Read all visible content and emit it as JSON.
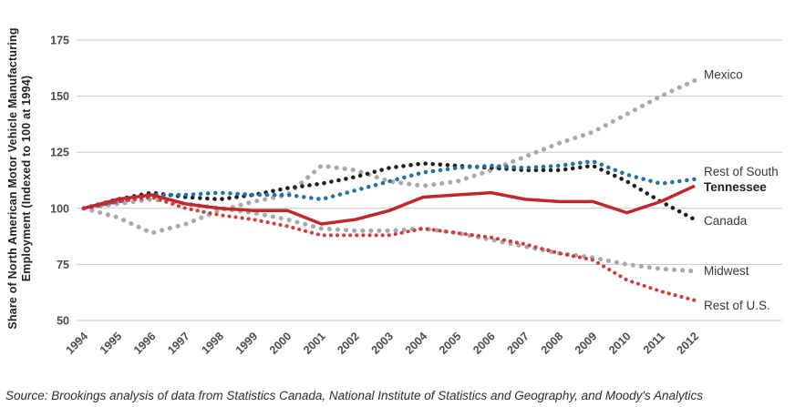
{
  "chart": {
    "y_axis_title_line1": "Share of North American Motor Vehicle Manufacturing",
    "y_axis_title_line2": "Employment (Indexed to 100 at 1994)",
    "source": "Source: Brookings analysis of data from Statistics Canada, National Institute of Statistics and Geography, and Moody's Analytics"
  },
  "chart_data": {
    "type": "line",
    "title": "",
    "xlabel": "",
    "ylabel": "Share of North American Motor Vehicle Manufacturing Employment (Indexed to 100 at 1994)",
    "x": [
      "1994",
      "1995",
      "1996",
      "1997",
      "1998",
      "1999",
      "2000",
      "2001",
      "2002",
      "2003",
      "2004",
      "2005",
      "2006",
      "2007",
      "2008",
      "2009",
      "2010",
      "2011",
      "2012"
    ],
    "ylim": [
      50,
      175
    ],
    "yticks": [
      50,
      75,
      100,
      125,
      150,
      175
    ],
    "grid": "horizontal",
    "legend_position": "right-edge-labels",
    "series": [
      {
        "id": "mexico",
        "name": "Mexico",
        "color": "#a7a9ab",
        "label_color": "#3c3c3e",
        "style": "dotted",
        "line_width": 5,
        "dot_gap": 9,
        "bold": false,
        "values": [
          100,
          96,
          89,
          93,
          99,
          103,
          106,
          119,
          117,
          112,
          110,
          112,
          117,
          123,
          129,
          134,
          142,
          150,
          157
        ]
      },
      {
        "id": "midwest",
        "name": "Midwest",
        "color": "#a7a9ab",
        "label_color": "#3c3c3e",
        "style": "dotted",
        "line_width": 5,
        "dot_gap": 9,
        "bold": false,
        "values": [
          100,
          102,
          104,
          102,
          100,
          98,
          95,
          91,
          90,
          90,
          91,
          89,
          86,
          83,
          80,
          78,
          75,
          73,
          72
        ]
      },
      {
        "id": "canada",
        "name": "Canada",
        "color": "#231f20",
        "label_color": "#3c3c3e",
        "style": "dotted",
        "line_width": 4.5,
        "dot_gap": 8,
        "bold": false,
        "values": [
          100,
          104,
          107,
          105,
          104,
          106,
          109,
          111,
          114,
          118,
          120,
          119,
          118,
          117,
          117,
          119,
          112,
          103,
          95
        ]
      },
      {
        "id": "rest_of_south",
        "name": "Rest of South",
        "color": "#2470a8",
        "label_color": "#3c3c3e",
        "style": "dotted",
        "line_width": 4.5,
        "dot_gap": 8,
        "bold": false,
        "values": [
          100,
          103,
          106,
          106,
          107,
          106,
          106,
          104,
          108,
          112,
          116,
          118,
          119,
          118,
          119,
          121,
          115,
          111,
          113
        ]
      },
      {
        "id": "rest_of_us",
        "name": "Rest of U.S.",
        "color": "#d6393a",
        "label_color": "#3c3c3e",
        "style": "dotted",
        "line_width": 4,
        "dot_gap": 7,
        "bold": false,
        "values": [
          100,
          103,
          105,
          100,
          97,
          95,
          92,
          88,
          88,
          88,
          91,
          89,
          87,
          84,
          80,
          77,
          68,
          63,
          59
        ]
      },
      {
        "id": "tennessee",
        "name": "Tennessee",
        "color": "#c0282d",
        "label_color": "#231f20",
        "style": "solid",
        "line_width": 3.5,
        "dot_gap": 0,
        "bold": true,
        "values": [
          100,
          104,
          106,
          102,
          100,
          99,
          99,
          93,
          95,
          99,
          105,
          106,
          107,
          104,
          103,
          103,
          98,
          103,
          110
        ]
      }
    ]
  }
}
